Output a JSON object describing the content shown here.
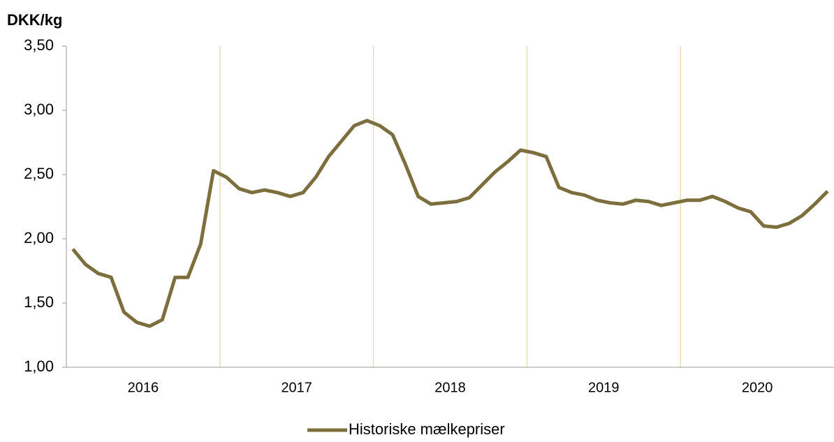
{
  "chart_data": {
    "type": "line",
    "y_label": "DKK/kg",
    "categories": [
      null,
      null,
      null,
      null,
      null,
      null,
      "2016",
      null,
      null,
      null,
      null,
      null,
      null,
      null,
      null,
      null,
      null,
      null,
      "2017",
      null,
      null,
      null,
      null,
      null,
      null,
      null,
      null,
      null,
      null,
      null,
      "2018",
      null,
      null,
      null,
      null,
      null,
      null,
      null,
      null,
      null,
      null,
      null,
      "2019",
      null,
      null,
      null,
      null,
      null,
      null,
      null,
      null,
      null,
      null,
      null,
      "2020",
      null,
      null,
      null,
      null,
      null
    ],
    "series": [
      {
        "name": "Historiske mælkepriser",
        "color": "#7d6e3e",
        "values": [
          1.92,
          1.8,
          1.73,
          1.7,
          1.43,
          1.35,
          1.32,
          1.37,
          1.7,
          1.7,
          1.96,
          2.53,
          2.48,
          2.39,
          2.36,
          2.38,
          2.36,
          2.33,
          2.36,
          2.48,
          2.64,
          2.76,
          2.88,
          2.92,
          2.88,
          2.81,
          2.58,
          2.33,
          2.27,
          2.28,
          2.29,
          2.32,
          2.42,
          2.52,
          2.6,
          2.69,
          2.67,
          2.64,
          2.4,
          2.36,
          2.34,
          2.3,
          2.28,
          2.27,
          2.3,
          2.29,
          2.26,
          2.28,
          2.3,
          2.3,
          2.33,
          2.29,
          2.24,
          2.21,
          2.1,
          2.09,
          2.12,
          2.18,
          2.27,
          2.37
        ]
      }
    ],
    "ylim": [
      1.0,
      3.5
    ],
    "yticks": [
      {
        "value": 1.0,
        "label": "1,00"
      },
      {
        "value": 1.5,
        "label": "1,50"
      },
      {
        "value": 2.0,
        "label": "2,00"
      },
      {
        "value": 2.5,
        "label": "2,50"
      },
      {
        "value": 3.0,
        "label": "3,00"
      },
      {
        "value": 3.5,
        "label": "3,50"
      }
    ],
    "grid_color": "#e9ddb8",
    "legend": "bottom"
  }
}
